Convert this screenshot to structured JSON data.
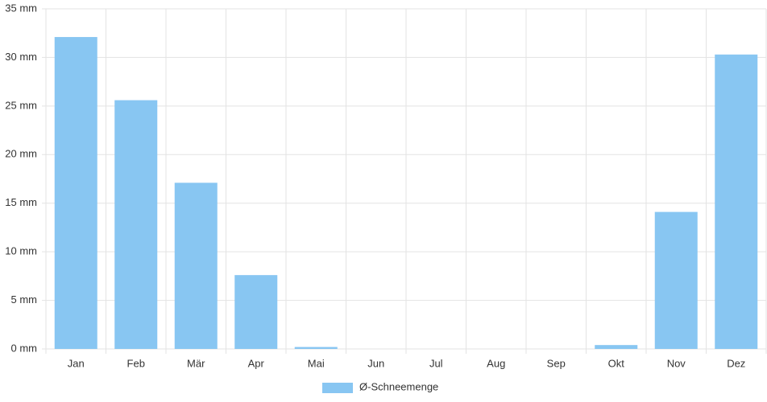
{
  "chart_data": {
    "type": "bar",
    "categories": [
      "Jan",
      "Feb",
      "Mär",
      "Apr",
      "Mai",
      "Jun",
      "Jul",
      "Aug",
      "Sep",
      "Okt",
      "Nov",
      "Dez"
    ],
    "series": [
      {
        "name": "Ø-Schneemenge",
        "color": "#88c6f2",
        "values": [
          32.1,
          25.6,
          17.1,
          7.6,
          0.2,
          0,
          0,
          0,
          0,
          0.4,
          14.1,
          30.3
        ]
      }
    ],
    "ylim": [
      0,
      35
    ],
    "yticks": [
      {
        "value": 0,
        "label": "0 mm"
      },
      {
        "value": 5,
        "label": "5 mm"
      },
      {
        "value": 10,
        "label": "10 mm"
      },
      {
        "value": 15,
        "label": "15 mm"
      },
      {
        "value": 20,
        "label": "20 mm"
      },
      {
        "value": 25,
        "label": "25 mm"
      },
      {
        "value": 30,
        "label": "30 mm"
      },
      {
        "value": 35,
        "label": "35 mm"
      }
    ],
    "grid": true,
    "legend": "bottom"
  }
}
